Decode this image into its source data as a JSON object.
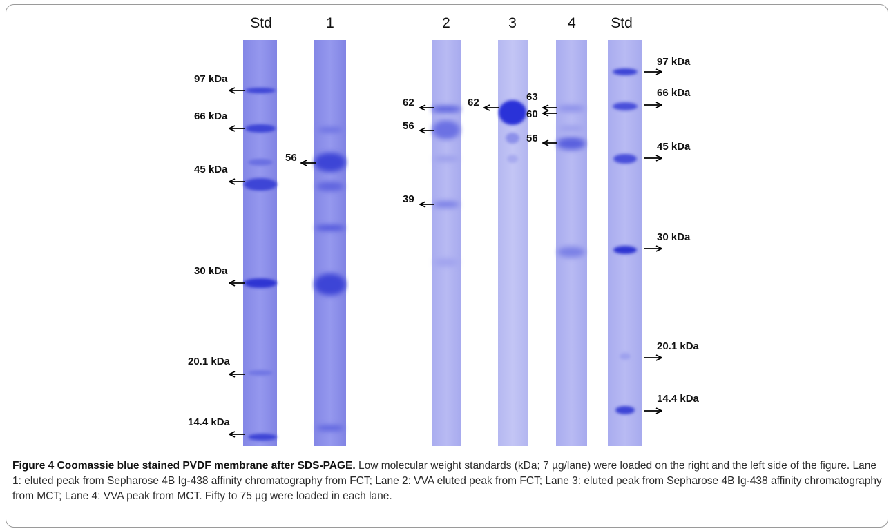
{
  "figure": {
    "lane_labels": [
      "Std",
      "1",
      "2",
      "3",
      "4",
      "Std"
    ],
    "markers": {
      "left_std": [
        "97 kDa",
        "66 kDa",
        "45 kDa",
        "30 kDa",
        "20.1 kDa",
        "14.4 kDa"
      ],
      "lane1": [
        "56"
      ],
      "lane2": [
        "62",
        "56",
        "39"
      ],
      "lane3": [
        "62"
      ],
      "lane4": [
        "63",
        "60",
        "56"
      ],
      "right_std": [
        "97 kDa",
        "66 kDa",
        "45 kDa",
        "30 kDa",
        "20.1 kDa",
        "14.4 kDa"
      ]
    },
    "colors": {
      "lane_bg": "#8c8fe8",
      "band": "#3d44d6",
      "arrow": "#000000"
    }
  },
  "caption": {
    "title": "Figure 4 Coomassie blue stained PVDF membrane after SDS-PAGE.",
    "body": "Low molecular weight standards (kDa; 7 µg/lane) were loaded on the right and the left side of the figure. Lane 1: eluted peak from Sepharose 4B Ig-438 affinity chromatography from FCT; Lane 2: VVA eluted peak from FCT; Lane 3: eluted peak from Sepharose 4B Ig-438 affinity chromatography from MCT; Lane 4: VVA peak from MCT. Fifty to 75 µg were loaded in each lane."
  }
}
